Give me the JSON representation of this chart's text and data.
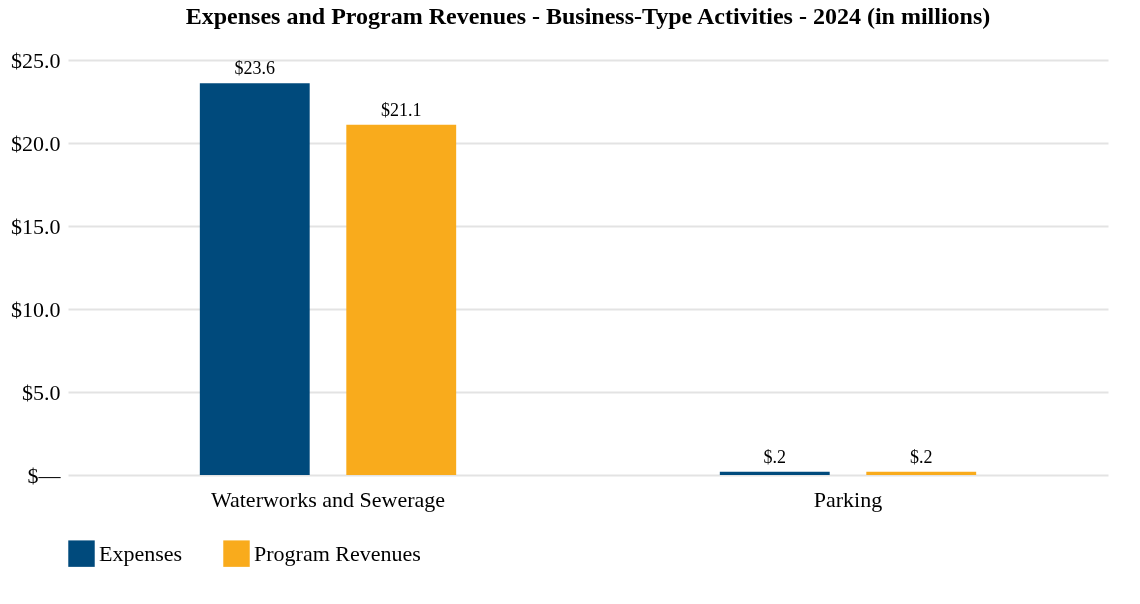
{
  "chart_data": {
    "type": "bar",
    "title": "Expenses and Program Revenues - Business-Type Activities - 2024 (in millions)",
    "categories": [
      "Waterworks and Sewerage",
      "Parking"
    ],
    "series": [
      {
        "name": "Expenses",
        "color": "#004a7c",
        "values": [
          23.6,
          0.2
        ],
        "value_labels": [
          "$23.6",
          "$.2"
        ]
      },
      {
        "name": "Program Revenues",
        "color": "#f9ab1c",
        "values": [
          21.1,
          0.2
        ],
        "value_labels": [
          "$21.1",
          "$.2"
        ]
      }
    ],
    "ylim": [
      0,
      25
    ],
    "yticks": [
      {
        "value": 0,
        "label": "$—"
      },
      {
        "value": 5,
        "label": "$5.0"
      },
      {
        "value": 10,
        "label": "$10.0"
      },
      {
        "value": 15,
        "label": "$15.0"
      },
      {
        "value": 20,
        "label": "$20.0"
      },
      {
        "value": 25,
        "label": "$25.0"
      }
    ],
    "grid": "y",
    "legend": "bottom"
  }
}
